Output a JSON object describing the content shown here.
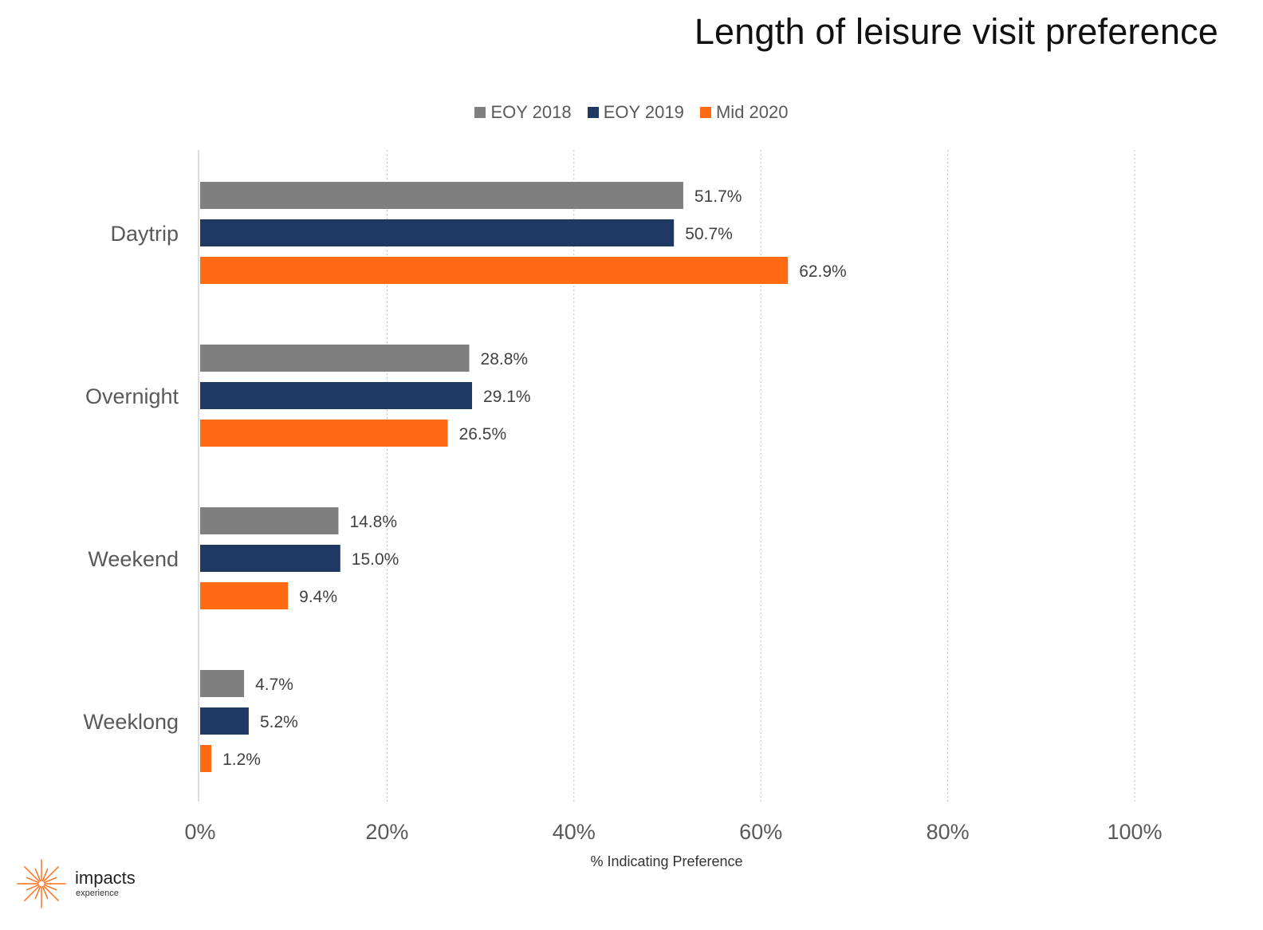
{
  "chart_data": {
    "type": "bar",
    "orientation": "horizontal",
    "title": "Length of leisure visit preference",
    "xlabel": "% Indicating Preference",
    "ylabel": "",
    "categories": [
      "Daytrip",
      "Overnight",
      "Weekend",
      "Weeklong"
    ],
    "series": [
      {
        "name": "EOY 2018",
        "color": "#7f7f7f",
        "values": [
          51.7,
          28.8,
          14.8,
          4.7
        ],
        "labels": [
          "51.7%",
          "28.8%",
          "14.8%",
          "4.7%"
        ]
      },
      {
        "name": "EOY 2019",
        "color": "#1f3864",
        "values": [
          50.7,
          29.1,
          15.0,
          5.2
        ],
        "labels": [
          "50.7%",
          "29.1%",
          "15.0%",
          "5.2%"
        ]
      },
      {
        "name": "Mid 2020",
        "color": "#ff6a13",
        "values": [
          62.9,
          26.5,
          9.4,
          1.2
        ],
        "labels": [
          "62.9%",
          "26.5%",
          "9.4%",
          "1.2%"
        ]
      }
    ],
    "xlim": [
      0,
      100
    ],
    "x_ticks": [
      0,
      20,
      40,
      60,
      80,
      100
    ],
    "x_tick_labels": [
      "0%",
      "20%",
      "40%",
      "60%",
      "80%",
      "100%"
    ],
    "grid": "vertical-dotted",
    "legend_position": "top-center"
  },
  "logo": {
    "name": "impacts",
    "sub": "experience",
    "color": "#ff6a13"
  }
}
